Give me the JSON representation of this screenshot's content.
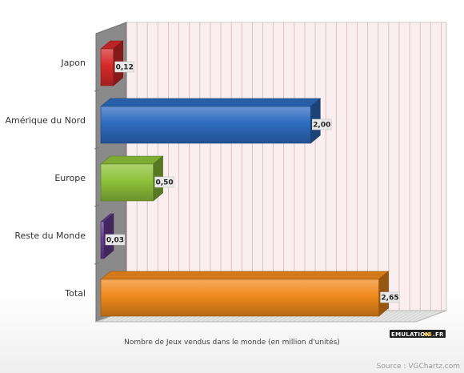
{
  "chart_data": {
    "type": "bar",
    "orientation": "horizontal",
    "categories": [
      "Japon",
      "Amérique du Nord",
      "Europe",
      "Reste du Monde",
      "Total"
    ],
    "values": [
      0.12,
      2.0,
      0.5,
      0.03,
      2.65
    ],
    "value_labels": [
      "0,12",
      "2,00",
      "0,50",
      "0,03",
      "2,65"
    ],
    "colors": [
      "#d62a2a",
      "#2d6cc0",
      "#8ec23b",
      "#6b3f99",
      "#f08a1c"
    ],
    "xlabel": "Nombre de Jeux vendus dans le monde (en million d'unités)",
    "xlim": [
      0,
      3.05
    ],
    "grid": true,
    "legend": "none",
    "style": "3d"
  },
  "watermark": {
    "part1": "EMULATION",
    "part2": "64",
    "part3": ".FR"
  },
  "source": "Source : VGChartz.com"
}
